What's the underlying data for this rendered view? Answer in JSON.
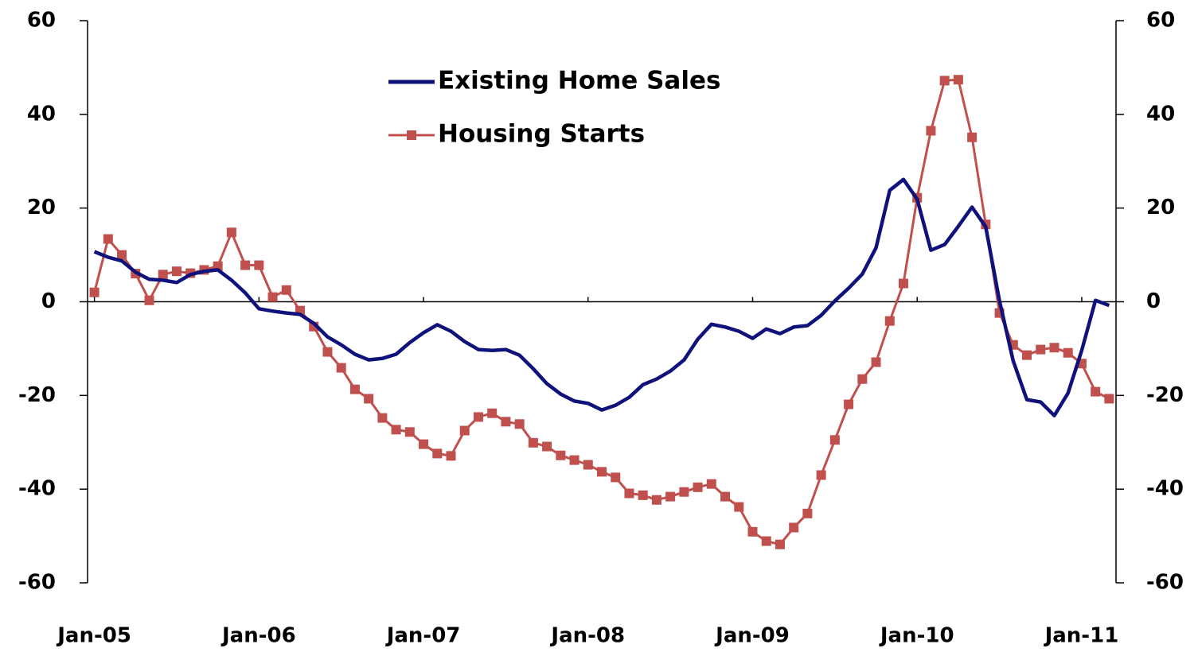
{
  "chart_data": {
    "type": "line",
    "categories": [
      "Jan-05",
      null,
      null,
      null,
      null,
      null,
      null,
      null,
      null,
      null,
      null,
      null,
      "Jan-06",
      null,
      null,
      null,
      null,
      null,
      null,
      null,
      null,
      null,
      null,
      null,
      "Jan-07",
      null,
      null,
      null,
      null,
      null,
      null,
      null,
      null,
      null,
      null,
      null,
      "Jan-08",
      null,
      null,
      null,
      null,
      null,
      null,
      null,
      null,
      null,
      null,
      null,
      "Jan-09",
      null,
      null,
      null,
      null,
      null,
      null,
      null,
      null,
      null,
      null,
      null,
      "Jan-10",
      null,
      null,
      null,
      null,
      null,
      null,
      null,
      null,
      null,
      null,
      null,
      "Jan-11",
      null,
      null
    ],
    "series": [
      {
        "name": "Existing Home Sales",
        "color": "#0f127a",
        "marker": false,
        "values": [
          10.7,
          9.5,
          8.7,
          6.3,
          4.8,
          4.6,
          4.1,
          5.8,
          6.5,
          6.8,
          4.6,
          1.9,
          -1.5,
          -2,
          -2.4,
          -2.7,
          -4.6,
          -7.5,
          -9.2,
          -11.2,
          -12.4,
          -12.1,
          -11.2,
          -8.7,
          -6.6,
          -4.9,
          -6.3,
          -8.5,
          -10.2,
          -10.4,
          -10.2,
          -11.4,
          -14.3,
          -17.5,
          -19.7,
          -21.2,
          -21.7,
          -23.1,
          -22.1,
          -20.4,
          -17.7,
          -16.5,
          -14.8,
          -12.4,
          -8,
          -4.8,
          -5.4,
          -6.3,
          -7.8,
          -5.8,
          -6.8,
          -5.4,
          -5.1,
          -2.9,
          0.2,
          2.9,
          5.9,
          11.5,
          23.8,
          26.1,
          21.9,
          11,
          12.2,
          16.1,
          20.2,
          16,
          0.2,
          -12.6,
          -20.9,
          -21.4,
          -24.3,
          -19.5,
          -10.4,
          0.3,
          -0.8
        ]
      },
      {
        "name": "Housing Starts",
        "color": "#c0504d",
        "marker": true,
        "values": [
          2,
          13.4,
          10,
          6,
          0.3,
          5.8,
          6.5,
          6.1,
          6.8,
          7.6,
          14.8,
          7.8,
          7.8,
          1,
          2.5,
          -1.9,
          -5.3,
          -10.7,
          -14.1,
          -18.7,
          -20.7,
          -24.8,
          -27.3,
          -27.8,
          -30.4,
          -32.4,
          -32.9,
          -27.5,
          -24.6,
          -23.8,
          -25.6,
          -26.1,
          -30.1,
          -30.9,
          -32.8,
          -33.8,
          -34.8,
          -36.3,
          -37.5,
          -40.9,
          -41.3,
          -42.3,
          -41.6,
          -40.6,
          -39.6,
          -38.9,
          -41.6,
          -43.8,
          -49.1,
          -51.1,
          -51.8,
          -48.2,
          -45.2,
          -37,
          -29.5,
          -21.9,
          -16.5,
          -12.9,
          -4.1,
          3.9,
          22.2,
          36.5,
          47.2,
          47.4,
          35.1,
          16.5,
          -2.4,
          -9.2,
          -11.4,
          -10.2,
          -9.8,
          -10.9,
          -13.2,
          -19.2,
          -20.7
        ]
      }
    ],
    "ylim": [
      -60,
      60
    ],
    "yticks": [
      -60,
      -40,
      -20,
      0,
      20,
      40,
      60
    ],
    "y2lim": [
      -60,
      60
    ],
    "y2ticks": [
      -60,
      -40,
      -20,
      0,
      20,
      40,
      60
    ],
    "grid": false
  }
}
